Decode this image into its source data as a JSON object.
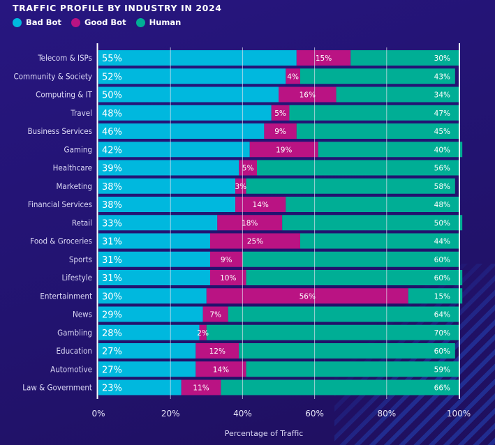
{
  "chart_data": {
    "type": "bar",
    "orientation": "horizontal",
    "stacked": true,
    "title": "TRAFFIC PROFILE BY INDUSTRY IN 2024",
    "xlabel": "Percentage of Traffic",
    "ylabel": "",
    "xlim": [
      0,
      100
    ],
    "xticks": [
      "0%",
      "20%",
      "40%",
      "60%",
      "80%",
      "100%"
    ],
    "grid": true,
    "legend_position": "top-left",
    "categories": [
      "Telecom & ISPs",
      "Community & Society",
      "Computing & IT",
      "Travel",
      "Business Services",
      "Gaming",
      "Healthcare",
      "Marketing",
      "Financial Services",
      "Retail",
      "Food & Groceries",
      "Sports",
      "Lifestyle",
      "Entertainment",
      "News",
      "Gambling",
      "Education",
      "Automotive",
      "Law & Government"
    ],
    "series": [
      {
        "name": "Bad Bot",
        "color": "#00B8DE",
        "values": [
          55,
          52,
          50,
          48,
          46,
          42,
          39,
          38,
          38,
          33,
          31,
          31,
          31,
          30,
          29,
          28,
          27,
          27,
          23
        ]
      },
      {
        "name": "Good Bot",
        "color": "#BA1383",
        "values": [
          15,
          4,
          16,
          5,
          9,
          19,
          5,
          3,
          14,
          18,
          25,
          9,
          10,
          56,
          7,
          2,
          12,
          14,
          11
        ]
      },
      {
        "name": "Human",
        "color": "#00AE95",
        "values": [
          30,
          43,
          34,
          47,
          45,
          40,
          56,
          58,
          48,
          50,
          44,
          60,
          60,
          15,
          64,
          70,
          60,
          59,
          66
        ]
      }
    ]
  }
}
